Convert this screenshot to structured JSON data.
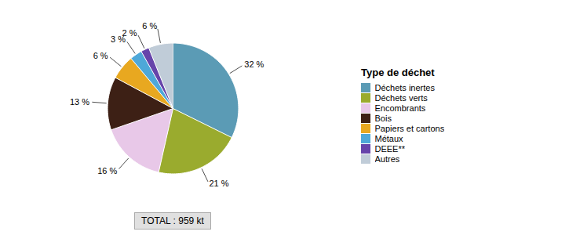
{
  "chart_data": {
    "type": "pie",
    "categories": [
      "Déchets inertes",
      "Déchets verts",
      "Encombrants",
      "Bois",
      "Papiers et cartons",
      "Métaux",
      "DEEE**",
      "Autres"
    ],
    "values": [
      32,
      21,
      16,
      13,
      6,
      3,
      2,
      6
    ],
    "value_labels": [
      "32 %",
      "21 %",
      "16 %",
      "13 %",
      "6 %",
      "3 %",
      "2 %",
      "6 %"
    ],
    "colors": [
      "#5b9bb5",
      "#9aab2e",
      "#e8c8e8",
      "#3d2015",
      "#e8a820",
      "#4ea8d8",
      "#6644aa",
      "#c0ccd8"
    ],
    "legend_title": "Type de déchet",
    "annotations": [
      "TOTAL : 959 kt"
    ],
    "data_labels": true,
    "legend": "right"
  }
}
